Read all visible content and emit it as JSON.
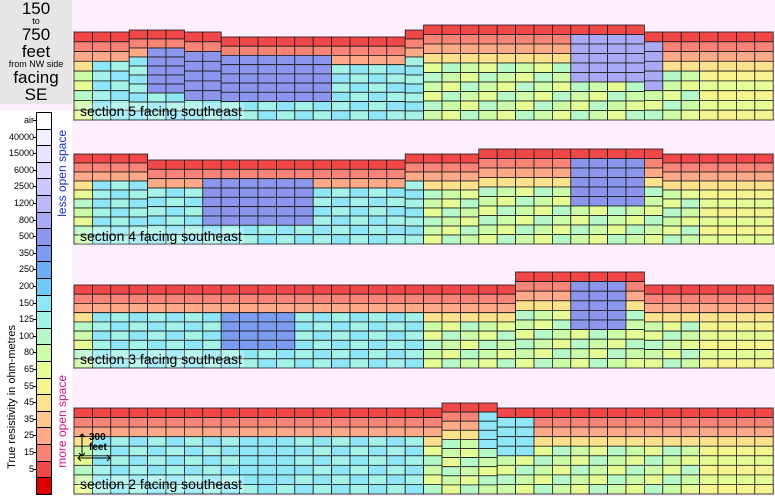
{
  "title": {
    "line1": "150",
    "line2": "to",
    "line3": "750",
    "line4": "feet",
    "line5": "from NW side",
    "line6": "facing",
    "line7": "SE"
  },
  "legend": {
    "unit_label": "True resistivity in ohm-metres",
    "less_label": "less open space",
    "more_label": "more open space",
    "levels": [
      {
        "label": "air",
        "color": "#ffffff"
      },
      {
        "label": "40000",
        "color": "#f4f0ff"
      },
      {
        "label": "15000",
        "color": "#e8e4ff"
      },
      {
        "label": "6000",
        "color": "#dcd6ff"
      },
      {
        "label": "2500",
        "color": "#ccc8ff"
      },
      {
        "label": "1200",
        "color": "#bcb8f8"
      },
      {
        "label": "800",
        "color": "#aaaaf4"
      },
      {
        "label": "500",
        "color": "#8c96ec"
      },
      {
        "label": "350",
        "color": "#7c9cf0"
      },
      {
        "label": "250",
        "color": "#6aaef0"
      },
      {
        "label": "200",
        "color": "#72c8f4"
      },
      {
        "label": "150",
        "color": "#8ee6f6"
      },
      {
        "label": "125",
        "color": "#a4f2e8"
      },
      {
        "label": "100",
        "color": "#b6f8c8"
      },
      {
        "label": "80",
        "color": "#ccfca8"
      },
      {
        "label": "65",
        "color": "#e6fc94"
      },
      {
        "label": "55",
        "color": "#f6f48e"
      },
      {
        "label": "45",
        "color": "#fde28e"
      },
      {
        "label": "35",
        "color": "#fdc88c"
      },
      {
        "label": "25",
        "color": "#fdaa88"
      },
      {
        "label": "15",
        "color": "#f88478"
      },
      {
        "label": "5",
        "color": "#f04848"
      },
      {
        "label": "",
        "color": "#dd0000"
      }
    ]
  },
  "scale": {
    "label_line1": "300",
    "label_line2": "feet"
  },
  "sections": [
    {
      "label": "section  5  facing southeast"
    },
    {
      "label": "section  4  facing southeast"
    },
    {
      "label": "section  3  facing southeast"
    },
    {
      "label": "section  2  facing southeast"
    }
  ]
}
